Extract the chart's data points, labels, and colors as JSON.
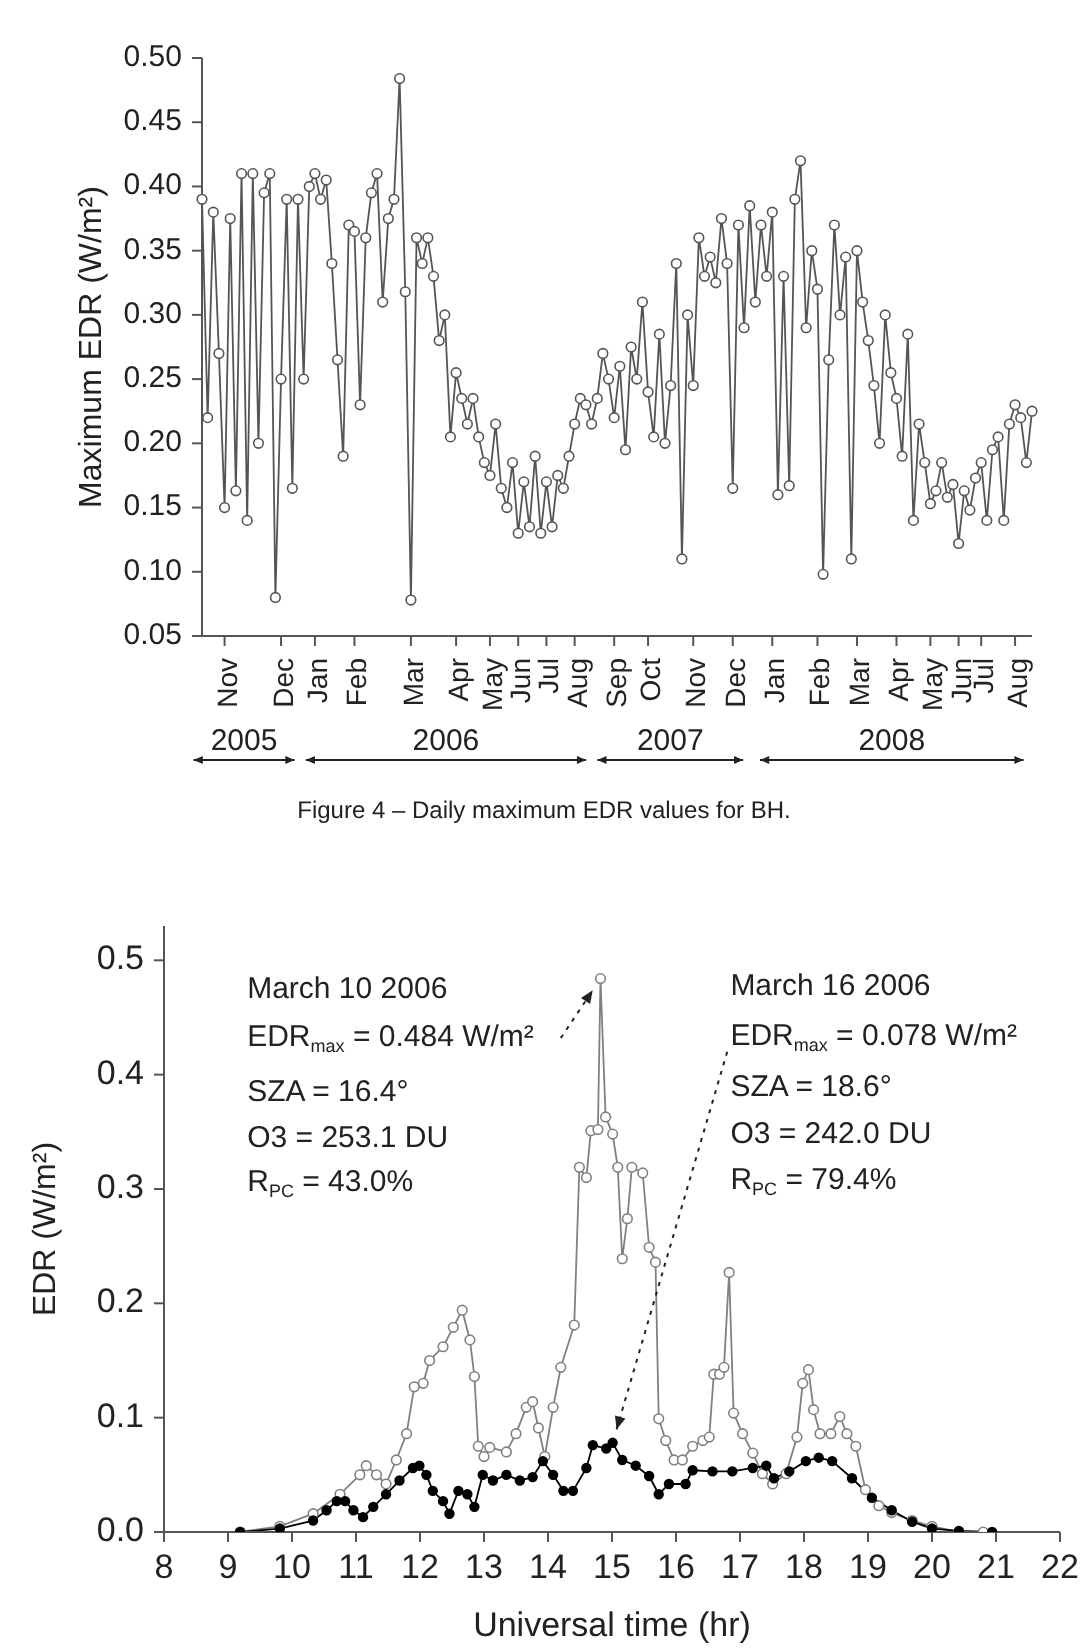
{
  "chart_data": [
    {
      "type": "line",
      "ylabel": "Maximum EDR (W/m²)",
      "marker": "circle",
      "line_style": "solid",
      "categories": [
        null,
        null,
        null,
        null,
        "Nov",
        null,
        null,
        null,
        null,
        null,
        null,
        null,
        null,
        null,
        "Dec",
        null,
        null,
        null,
        null,
        null,
        "Jan",
        null,
        null,
        null,
        null,
        null,
        null,
        "Feb",
        null,
        null,
        null,
        null,
        null,
        null,
        null,
        null,
        null,
        "Mar",
        null,
        null,
        null,
        null,
        null,
        null,
        null,
        "Apr",
        null,
        null,
        null,
        null,
        null,
        "May",
        null,
        null,
        null,
        null,
        "Jun",
        null,
        null,
        null,
        null,
        "Jul",
        null,
        null,
        null,
        null,
        "Aug",
        null,
        null,
        null,
        null,
        null,
        null,
        "Sep",
        null,
        null,
        null,
        null,
        null,
        "Oct",
        null,
        null,
        null,
        null,
        null,
        null,
        null,
        "Nov",
        null,
        null,
        null,
        null,
        null,
        null,
        "Dec",
        null,
        null,
        null,
        null,
        null,
        null,
        "Jan",
        null,
        null,
        null,
        null,
        null,
        null,
        null,
        "Feb",
        null,
        null,
        null,
        null,
        null,
        null,
        "Mar",
        null,
        null,
        null,
        null,
        null,
        null,
        "Apr",
        null,
        null,
        null,
        null,
        null,
        "May",
        null,
        null,
        null,
        null,
        "Jun",
        null,
        null,
        null,
        "Jul",
        null,
        null,
        null,
        null,
        null,
        "Aug",
        null,
        null,
        null
      ],
      "ylim": [
        0.05,
        0.5
      ],
      "yticks": [
        {
          "value": 0.05,
          "label": "0.05"
        },
        {
          "value": 0.1,
          "label": "0.10"
        },
        {
          "value": 0.15,
          "label": "0.15"
        },
        {
          "value": 0.2,
          "label": "0.20"
        },
        {
          "value": 0.25,
          "label": "0.25"
        },
        {
          "value": 0.3,
          "label": "0.30"
        },
        {
          "value": 0.35,
          "label": "0.35"
        },
        {
          "value": 0.4,
          "label": "0.40"
        },
        {
          "value": 0.45,
          "label": "0.45"
        },
        {
          "value": 0.5,
          "label": "0.50"
        }
      ],
      "annotations": [
        "2005",
        "2006",
        "2007",
        "2008",
        "Figure 4 – Daily maximum EDR values for BH."
      ],
      "series": [
        {
          "color": "#555555",
          "values": [
            0.39,
            0.22,
            0.38,
            0.27,
            0.15,
            0.375,
            0.163,
            0.41,
            0.14,
            0.41,
            0.2,
            0.395,
            0.41,
            0.08,
            0.25,
            0.39,
            0.165,
            0.39,
            0.25,
            0.4,
            0.41,
            0.39,
            0.405,
            0.34,
            0.265,
            0.19,
            0.37,
            0.365,
            0.23,
            0.36,
            0.395,
            0.41,
            0.31,
            0.375,
            0.39,
            0.484,
            0.318,
            0.078,
            0.36,
            0.34,
            0.36,
            0.33,
            0.28,
            0.3,
            0.205,
            0.255,
            0.235,
            0.215,
            0.235,
            0.205,
            0.185,
            0.175,
            0.215,
            0.165,
            0.15,
            0.185,
            0.13,
            0.17,
            0.135,
            0.19,
            0.13,
            0.17,
            0.135,
            0.175,
            0.165,
            0.19,
            0.215,
            0.235,
            0.23,
            0.215,
            0.235,
            0.27,
            0.25,
            0.22,
            0.26,
            0.195,
            0.275,
            0.25,
            0.31,
            0.24,
            0.205,
            0.285,
            0.2,
            0.245,
            0.34,
            0.11,
            0.3,
            0.245,
            0.36,
            0.33,
            0.345,
            0.325,
            0.375,
            0.34,
            0.165,
            0.37,
            0.29,
            0.385,
            0.31,
            0.37,
            0.33,
            0.38,
            0.16,
            0.33,
            0.167,
            0.39,
            0.42,
            0.29,
            0.35,
            0.32,
            0.098,
            0.265,
            0.37,
            0.3,
            0.345,
            0.11,
            0.35,
            0.31,
            0.28,
            0.245,
            0.2,
            0.3,
            0.255,
            0.235,
            0.19,
            0.285,
            0.14,
            0.215,
            0.185,
            0.153,
            0.163,
            0.185,
            0.158,
            0.168,
            0.122,
            0.163,
            0.148,
            0.173,
            0.185,
            0.14,
            0.195,
            0.205,
            0.14,
            0.215,
            0.23,
            0.22,
            0.185,
            0.225
          ]
        }
      ]
    },
    {
      "type": "line",
      "xlabel": "Universal time (hr)",
      "ylabel": "EDR (W/m²)",
      "marker": "circle",
      "line_style": "solid",
      "xlim": [
        8,
        22
      ],
      "ylim": [
        0,
        0.53
      ],
      "xticks": [
        8,
        9,
        10,
        11,
        12,
        13,
        14,
        15,
        16,
        17,
        18,
        19,
        20,
        21,
        22
      ],
      "yticks": [
        {
          "value": 0,
          "label": "0.0"
        },
        0.1,
        0.2,
        0.3,
        0.4,
        0.5
      ],
      "annotations": [
        "March 10 2006",
        {
          "text": "EDR$_{max}$ = 0.484 W/m²",
          "x": 14.82,
          "y": 0.484
        },
        "SZA = 16.4°",
        "O3 = 253.1 DU",
        "R$_{PC}$ = 43.0%",
        "March 16 2006",
        {
          "text": "EDR$_{max}$ = 0.078 W/m²",
          "x": 15.01,
          "y": 0.078
        },
        "SZA = 18.6°",
        "O3 = 242.0 DU",
        "R$_{PC}$ = 79.4%"
      ],
      "series": [
        {
          "color": "#808080",
          "x": [
            9.19,
            9.81,
            10.33,
            10.75,
            11.06,
            11.16,
            11.32,
            11.47,
            11.63,
            11.79,
            11.91,
            12.05,
            12.15,
            12.36,
            12.52,
            12.66,
            12.78,
            12.85,
            12.91,
            13.0,
            13.09,
            13.35,
            13.5,
            13.66,
            13.76,
            13.85,
            13.95,
            14.08,
            14.2,
            14.41,
            14.49,
            14.6,
            14.67,
            14.78,
            14.82,
            14.9,
            15.01,
            15.09,
            15.16,
            15.24,
            15.31,
            15.48,
            15.58,
            15.68,
            15.73,
            15.84,
            15.97,
            16.1,
            16.26,
            16.42,
            16.52,
            16.59,
            16.68,
            16.75,
            16.83,
            16.9,
            17.04,
            17.2,
            17.35,
            17.51,
            17.72,
            17.89,
            17.98,
            18.07,
            18.15,
            18.25,
            18.42,
            18.56,
            18.67,
            18.81,
            18.96,
            19.17,
            19.37,
            19.69,
            20.0,
            20.42,
            20.8
          ],
          "values": [
            0,
            0.005,
            0.016,
            0.033,
            0.05,
            0.058,
            0.05,
            0.042,
            0.063,
            0.086,
            0.127,
            0.13,
            0.15,
            0.162,
            0.179,
            0.194,
            0.168,
            0.136,
            0.075,
            0.066,
            0.074,
            0.07,
            0.086,
            0.109,
            0.114,
            0.091,
            0.066,
            0.109,
            0.144,
            0.181,
            0.319,
            0.31,
            0.351,
            0.352,
            0.484,
            0.363,
            0.348,
            0.319,
            0.239,
            0.274,
            0.319,
            0.314,
            0.249,
            0.236,
            0.099,
            0.08,
            0.063,
            0.063,
            0.075,
            0.08,
            0.083,
            0.138,
            0.138,
            0.144,
            0.227,
            0.104,
            0.086,
            0.069,
            0.051,
            0.042,
            0.051,
            0.083,
            0.13,
            0.142,
            0.107,
            0.086,
            0.086,
            0.101,
            0.086,
            0.075,
            0.037,
            0.023,
            0.017,
            0.01,
            0.005,
            0,
            0
          ]
        },
        {
          "color": "#000000",
          "x": [
            9.19,
            9.81,
            10.33,
            10.54,
            10.7,
            10.83,
            10.96,
            11.11,
            11.27,
            11.47,
            11.68,
            11.89,
            11.99,
            12.1,
            12.2,
            12.36,
            12.46,
            12.6,
            12.74,
            12.85,
            12.98,
            13.14,
            13.35,
            13.56,
            13.76,
            13.92,
            14.08,
            14.24,
            14.39,
            14.6,
            14.7,
            14.91,
            15.01,
            15.16,
            15.37,
            15.58,
            15.73,
            15.89,
            16.15,
            16.26,
            16.57,
            16.88,
            17.2,
            17.41,
            17.53,
            17.77,
            18.03,
            18.23,
            18.44,
            18.75,
            19.06,
            19.37,
            19.69,
            20.0,
            20.42,
            20.94
          ],
          "values": [
            0,
            0.003,
            0.01,
            0.019,
            0.027,
            0.027,
            0.019,
            0.013,
            0.022,
            0.033,
            0.045,
            0.056,
            0.058,
            0.05,
            0.036,
            0.027,
            0.016,
            0.036,
            0.033,
            0.022,
            0.05,
            0.045,
            0.05,
            0.045,
            0.048,
            0.062,
            0.05,
            0.036,
            0.036,
            0.056,
            0.076,
            0.073,
            0.078,
            0.063,
            0.058,
            0.049,
            0.033,
            0.042,
            0.042,
            0.054,
            0.053,
            0.053,
            0.056,
            0.058,
            0.047,
            0.053,
            0.062,
            0.065,
            0.062,
            0.047,
            0.03,
            0.019,
            0.009,
            0.003,
            0.001,
            0
          ]
        }
      ]
    }
  ]
}
